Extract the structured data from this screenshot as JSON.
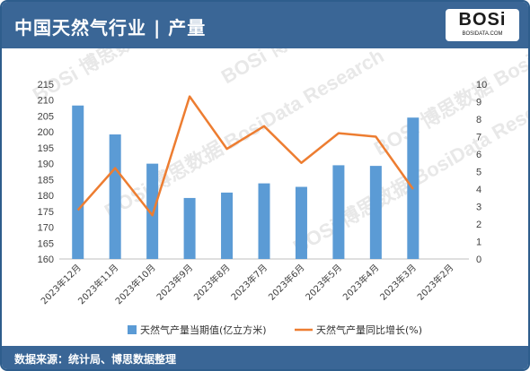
{
  "header": {
    "title": "中国天然气行业 | 产量"
  },
  "logo": {
    "text": "BOSi",
    "subtext": "BOSIDATA.COM"
  },
  "footer": {
    "source": "数据来源：统计局、博思数据整理"
  },
  "watermark": {
    "text": "BOSi 博思数据 BosiData Research"
  },
  "colors": {
    "bar": "#5b9bd5",
    "line": "#ed7d31",
    "header": "#3a6696"
  },
  "chart_data": {
    "type": "bar",
    "categories": [
      "2023年12月",
      "2023年11月",
      "2023年10月",
      "2023年9月",
      "2023年8月",
      "2023年7月",
      "2023年6月",
      "2023年5月",
      "2023年4月",
      "2023年3月",
      "2023年2月"
    ],
    "series": [
      {
        "name": "天然气产量当期值(亿立方米)",
        "type": "bar",
        "axis": "left",
        "values": [
          208.3,
          199.2,
          190.0,
          179.2,
          180.9,
          183.8,
          182.7,
          189.5,
          189.3,
          204.5,
          null
        ]
      },
      {
        "name": "天然气产量同比增长(%)",
        "type": "line",
        "axis": "right",
        "values": [
          2.8,
          5.2,
          2.5,
          9.3,
          6.3,
          7.6,
          5.5,
          7.2,
          7.0,
          4.0,
          null
        ]
      }
    ],
    "y_left": {
      "min": 160,
      "max": 215,
      "step": 5,
      "ticks": [
        "160",
        "165",
        "170",
        "175",
        "180",
        "185",
        "190",
        "195",
        "200",
        "205",
        "210",
        "215"
      ]
    },
    "y_right": {
      "min": 0,
      "max": 10,
      "step": 1,
      "ticks": [
        "0",
        "1",
        "2",
        "3",
        "4",
        "5",
        "6",
        "7",
        "8",
        "9",
        "10"
      ]
    },
    "legend_position": "bottom",
    "grid": false
  }
}
